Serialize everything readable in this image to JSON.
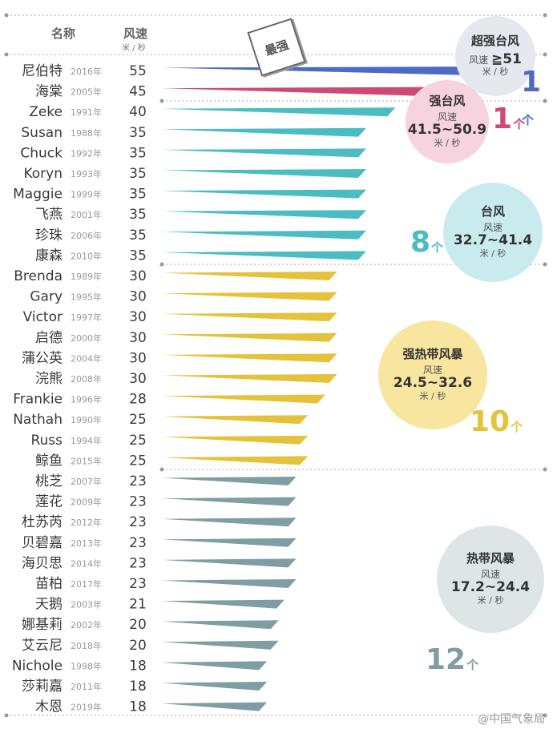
{
  "header": {
    "name_label": "名称",
    "speed_label": "风速",
    "speed_unit": "米 / 秒"
  },
  "badge": "最强",
  "categories": [
    {
      "id": "super",
      "title": "超强台风",
      "speed_label": "风速",
      "range": "≧51",
      "unit": "米 / 秒",
      "count": "1",
      "count_unit": "个",
      "color": "#4e6bc4",
      "bubble_color": "#e6e8f0"
    },
    {
      "id": "strong",
      "title": "强台风",
      "speed_label": "风速",
      "range": "41.5~50.9",
      "unit": "米 / 秒",
      "count": "1",
      "count_unit": "个",
      "color": "#cd4a76",
      "bubble_color": "#f6d3df"
    },
    {
      "id": "typhoon",
      "title": "台风",
      "speed_label": "风速",
      "range": "32.7~41.4",
      "unit": "米 / 秒",
      "count": "8",
      "count_unit": "个",
      "color": "#4cbcc3",
      "bubble_color": "#c9ebee"
    },
    {
      "id": "sts",
      "title": "强热带风暴",
      "speed_label": "风速",
      "range": "24.5~32.6",
      "unit": "米 / 秒",
      "count": "10",
      "count_unit": "个",
      "color": "#e4c23c",
      "bubble_color": "#f8e6a0"
    },
    {
      "id": "ts",
      "title": "热带风暴",
      "speed_label": "风速",
      "range": "17.2~24.4",
      "unit": "米 / 秒",
      "count": "12",
      "count_unit": "个",
      "color": "#7f9ea3",
      "bubble_color": "#dde5e7"
    }
  ],
  "chart_data": {
    "type": "bar",
    "title": "",
    "xlabel": "风速",
    "ylabel": "名称",
    "unit": "米/秒",
    "xlim": [
      0,
      56
    ],
    "rows": [
      {
        "name": "尼伯特",
        "year": "2016年",
        "speed": 55,
        "category": "super"
      },
      {
        "name": "海棠",
        "year": "2005年",
        "speed": 45,
        "category": "strong"
      },
      {
        "name": "Zeke",
        "year": "1991年",
        "speed": 40,
        "category": "typhoon"
      },
      {
        "name": "Susan",
        "year": "1988年",
        "speed": 35,
        "category": "typhoon"
      },
      {
        "name": "Chuck",
        "year": "1992年",
        "speed": 35,
        "category": "typhoon"
      },
      {
        "name": "Koryn",
        "year": "1993年",
        "speed": 35,
        "category": "typhoon"
      },
      {
        "name": "Maggie",
        "year": "1999年",
        "speed": 35,
        "category": "typhoon"
      },
      {
        "name": "飞燕",
        "year": "2001年",
        "speed": 35,
        "category": "typhoon"
      },
      {
        "name": "珍珠",
        "year": "2006年",
        "speed": 35,
        "category": "typhoon"
      },
      {
        "name": "康森",
        "year": "2010年",
        "speed": 35,
        "category": "typhoon"
      },
      {
        "name": "Brenda",
        "year": "1989年",
        "speed": 30,
        "category": "sts"
      },
      {
        "name": "Gary",
        "year": "1995年",
        "speed": 30,
        "category": "sts"
      },
      {
        "name": "Victor",
        "year": "1997年",
        "speed": 30,
        "category": "sts"
      },
      {
        "name": "启德",
        "year": "2000年",
        "speed": 30,
        "category": "sts"
      },
      {
        "name": "蒲公英",
        "year": "2004年",
        "speed": 30,
        "category": "sts"
      },
      {
        "name": "浣熊",
        "year": "2008年",
        "speed": 30,
        "category": "sts"
      },
      {
        "name": "Frankie",
        "year": "1996年",
        "speed": 28,
        "category": "sts"
      },
      {
        "name": "Nathah",
        "year": "1990年",
        "speed": 25,
        "category": "sts"
      },
      {
        "name": "Russ",
        "year": "1994年",
        "speed": 25,
        "category": "sts"
      },
      {
        "name": "鲸鱼",
        "year": "2015年",
        "speed": 25,
        "category": "sts"
      },
      {
        "name": "桃芝",
        "year": "2007年",
        "speed": 23,
        "category": "ts"
      },
      {
        "name": "莲花",
        "year": "2009年",
        "speed": 23,
        "category": "ts"
      },
      {
        "name": "杜苏芮",
        "year": "2012年",
        "speed": 23,
        "category": "ts"
      },
      {
        "name": "贝碧嘉",
        "year": "2013年",
        "speed": 23,
        "category": "ts"
      },
      {
        "name": "海贝思",
        "year": "2014年",
        "speed": 23,
        "category": "ts"
      },
      {
        "name": "苗柏",
        "year": "2017年",
        "speed": 23,
        "category": "ts"
      },
      {
        "name": "天鹅",
        "year": "2003年",
        "speed": 21,
        "category": "ts"
      },
      {
        "name": "娜基莉",
        "year": "2002年",
        "speed": 20,
        "category": "ts"
      },
      {
        "name": "艾云尼",
        "year": "2018年",
        "speed": 20,
        "category": "ts"
      },
      {
        "name": "Nichole",
        "year": "1998年",
        "speed": 18,
        "category": "ts"
      },
      {
        "name": "莎莉嘉",
        "year": "2011年",
        "speed": 18,
        "category": "ts"
      },
      {
        "name": "木恩",
        "year": "2019年",
        "speed": 18,
        "category": "ts"
      }
    ]
  },
  "watermark": "@中国气象局"
}
